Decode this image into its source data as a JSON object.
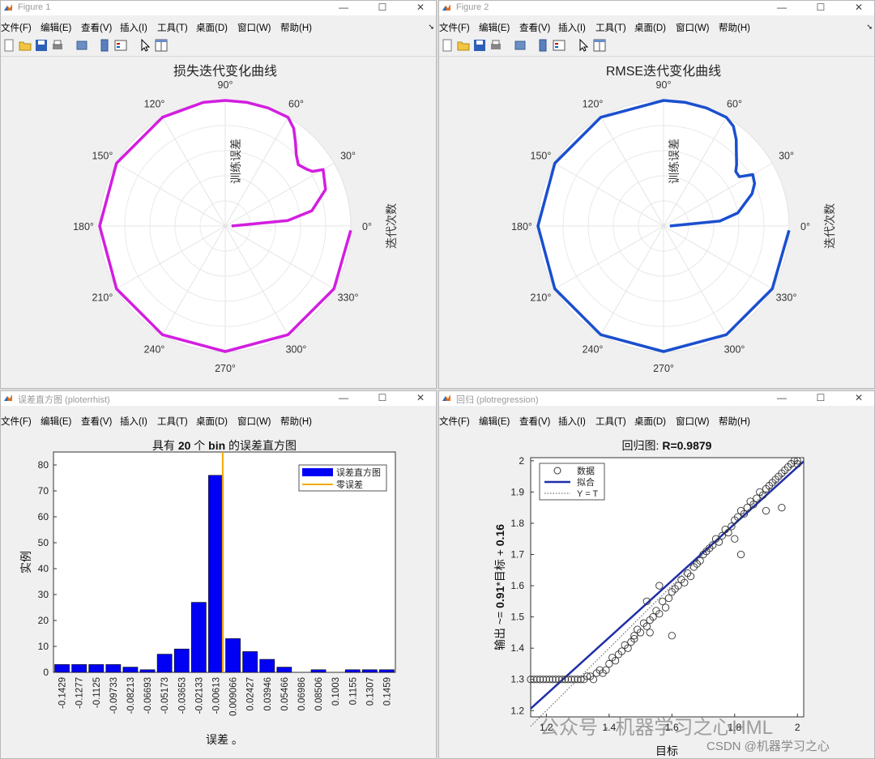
{
  "menu": [
    "文件(F)",
    "编辑(E)",
    "查看(V)",
    "插入(I)",
    "工具(T)",
    "桌面(D)",
    "窗口(W)",
    "帮助(H)"
  ],
  "window_controls": [
    "—",
    "☐",
    "✕"
  ],
  "colors": {
    "magenta": "#d21ee0",
    "blue": "#1a4fcf",
    "bar": "#0000f5",
    "zero_line": "#f2a900",
    "regression_line": "#1f2fa8"
  },
  "fig1": {
    "window_title": "Figure 1",
    "title": "损失迭代变化曲线",
    "radial_label": "训练误差",
    "theta_label": "迭代次数",
    "angle_ticks": [
      "0°",
      "30°",
      "60°",
      "90°",
      "120°",
      "150°",
      "180°",
      "210°",
      "240°",
      "270°",
      "300°",
      "330°"
    ],
    "chart_data": {
      "type": "line",
      "coordinate": "polar",
      "color": "#d21ee0",
      "theta_deg": [
        0,
        5,
        10,
        20,
        30,
        32,
        35,
        40,
        45,
        50,
        55,
        60,
        70,
        80,
        90,
        100,
        120,
        150,
        180,
        210,
        240,
        270,
        300,
        330,
        358
      ],
      "r": [
        0.05,
        0.5,
        0.7,
        0.85,
        0.9,
        0.82,
        0.79,
        0.76,
        0.8,
        0.87,
        0.95,
        1.0,
        1.0,
        1.0,
        1.0,
        1.0,
        1.0,
        1.0,
        1.0,
        1.0,
        1.0,
        1.0,
        1.0,
        1.0,
        1.0
      ]
    }
  },
  "fig2": {
    "window_title": "Figure 2",
    "title": "RMSE迭代变化曲线",
    "radial_label": "训练误差",
    "theta_label": "迭代次数",
    "angle_ticks": [
      "0°",
      "30°",
      "60°",
      "90°",
      "120°",
      "150°",
      "180°",
      "210°",
      "240°",
      "270°",
      "300°",
      "330°"
    ],
    "chart_data": {
      "type": "line",
      "coordinate": "polar",
      "color": "#1a4fcf",
      "theta_deg": [
        0,
        5,
        10,
        20,
        25,
        30,
        33,
        37,
        40,
        45,
        50,
        55,
        60,
        70,
        80,
        90,
        120,
        150,
        180,
        210,
        240,
        270,
        300,
        330,
        358
      ],
      "r": [
        0.05,
        0.45,
        0.6,
        0.75,
        0.8,
        0.82,
        0.72,
        0.72,
        0.76,
        0.82,
        0.9,
        0.97,
        1.0,
        1.0,
        1.0,
        1.0,
        1.0,
        1.0,
        1.0,
        1.0,
        1.0,
        1.0,
        1.0,
        1.0,
        1.0
      ]
    }
  },
  "fig3": {
    "window_title": "误差直方图 (ploterrhist)",
    "title_pre": "具有 ",
    "title_bold": "20",
    "title_mid": " 个 ",
    "title_bold2": "bin",
    "title_post": " 的误差直方图",
    "legend": [
      "误差直方图",
      "零误差"
    ],
    "chart_data": {
      "type": "bar",
      "categories": [
        "-0.1429",
        "-0.1277",
        "-0.1125",
        "-0.09733",
        "-0.08213",
        "-0.06693",
        "-0.05173",
        "-0.03653",
        "-0.02133",
        "-0.00613",
        "0.009066",
        "0.02427",
        "0.03946",
        "0.05466",
        "0.06986",
        "0.08506",
        "0.1003",
        "0.1155",
        "0.1307",
        "0.1459"
      ],
      "values": [
        3,
        3,
        3,
        3,
        2,
        1,
        7,
        9,
        27,
        76,
        13,
        8,
        5,
        2,
        0,
        1,
        0,
        1,
        1,
        1
      ],
      "ylabel": "实例",
      "xlabel": "误差 。",
      "ylim": [
        0,
        85
      ],
      "yticks": [
        0,
        10,
        20,
        30,
        40,
        50,
        60,
        70,
        80
      ],
      "zero_error_x": -0.00613
    }
  },
  "fig4": {
    "window_title": "回归 (plotregression)",
    "title_pre": "回归图: ",
    "title_bold": "R=0.9879",
    "ylabel_pre": "输出 ~= ",
    "ylabel_bold": "0.91",
    "ylabel_post": "*目标 + ",
    "ylabel_bold2": "0.16",
    "xlabel": "目标",
    "legend": [
      "数据",
      "拟合",
      "Y = T"
    ],
    "chart_data": {
      "type": "scatter",
      "xlim": [
        1.15,
        2.02
      ],
      "ylim": [
        1.18,
        2.01
      ],
      "xticks": [
        "1.2",
        "1.4",
        "1.6",
        "1.8",
        "2"
      ],
      "yticks": [
        "1.2",
        "1.3",
        "1.4",
        "1.5",
        "1.6",
        "1.7",
        "1.8",
        "1.9",
        "2"
      ],
      "fit": {
        "slope": 0.91,
        "intercept": 0.16
      },
      "points": [
        [
          1.15,
          1.3
        ],
        [
          1.16,
          1.3
        ],
        [
          1.17,
          1.3
        ],
        [
          1.18,
          1.3
        ],
        [
          1.19,
          1.3
        ],
        [
          1.2,
          1.3
        ],
        [
          1.21,
          1.3
        ],
        [
          1.22,
          1.3
        ],
        [
          1.23,
          1.3
        ],
        [
          1.24,
          1.3
        ],
        [
          1.25,
          1.3
        ],
        [
          1.26,
          1.3
        ],
        [
          1.27,
          1.3
        ],
        [
          1.28,
          1.3
        ],
        [
          1.29,
          1.3
        ],
        [
          1.3,
          1.3
        ],
        [
          1.31,
          1.3
        ],
        [
          1.32,
          1.3
        ],
        [
          1.33,
          1.31
        ],
        [
          1.34,
          1.31
        ],
        [
          1.35,
          1.3
        ],
        [
          1.36,
          1.32
        ],
        [
          1.37,
          1.33
        ],
        [
          1.38,
          1.32
        ],
        [
          1.39,
          1.33
        ],
        [
          1.4,
          1.35
        ],
        [
          1.41,
          1.37
        ],
        [
          1.42,
          1.36
        ],
        [
          1.43,
          1.38
        ],
        [
          1.44,
          1.39
        ],
        [
          1.45,
          1.41
        ],
        [
          1.46,
          1.4
        ],
        [
          1.47,
          1.42
        ],
        [
          1.48,
          1.44
        ],
        [
          1.49,
          1.46
        ],
        [
          1.5,
          1.45
        ],
        [
          1.51,
          1.48
        ],
        [
          1.52,
          1.47
        ],
        [
          1.53,
          1.49
        ],
        [
          1.54,
          1.5
        ],
        [
          1.55,
          1.52
        ],
        [
          1.56,
          1.51
        ],
        [
          1.57,
          1.55
        ],
        [
          1.58,
          1.53
        ],
        [
          1.59,
          1.56
        ],
        [
          1.6,
          1.58
        ],
        [
          1.61,
          1.59
        ],
        [
          1.62,
          1.6
        ],
        [
          1.63,
          1.62
        ],
        [
          1.64,
          1.61
        ],
        [
          1.65,
          1.64
        ],
        [
          1.66,
          1.63
        ],
        [
          1.67,
          1.66
        ],
        [
          1.68,
          1.67
        ],
        [
          1.69,
          1.68
        ],
        [
          1.7,
          1.7
        ],
        [
          1.71,
          1.71
        ],
        [
          1.72,
          1.72
        ],
        [
          1.73,
          1.73
        ],
        [
          1.74,
          1.75
        ],
        [
          1.75,
          1.74
        ],
        [
          1.76,
          1.76
        ],
        [
          1.77,
          1.78
        ],
        [
          1.78,
          1.77
        ],
        [
          1.79,
          1.79
        ],
        [
          1.8,
          1.81
        ],
        [
          1.81,
          1.82
        ],
        [
          1.82,
          1.84
        ],
        [
          1.83,
          1.83
        ],
        [
          1.84,
          1.85
        ],
        [
          1.85,
          1.87
        ],
        [
          1.86,
          1.86
        ],
        [
          1.87,
          1.88
        ],
        [
          1.88,
          1.9
        ],
        [
          1.89,
          1.89
        ],
        [
          1.9,
          1.91
        ],
        [
          1.91,
          1.92
        ],
        [
          1.92,
          1.93
        ],
        [
          1.93,
          1.94
        ],
        [
          1.94,
          1.95
        ],
        [
          1.95,
          1.96
        ],
        [
          1.96,
          1.97
        ],
        [
          1.97,
          1.98
        ],
        [
          1.98,
          1.99
        ],
        [
          1.99,
          2.0
        ],
        [
          2.0,
          1.99
        ],
        [
          2.0,
          2.0
        ],
        [
          1.6,
          1.44
        ],
        [
          1.82,
          1.7
        ],
        [
          1.8,
          1.75
        ],
        [
          1.9,
          1.84
        ],
        [
          1.95,
          1.85
        ],
        [
          1.48,
          1.43
        ],
        [
          1.52,
          1.55
        ],
        [
          1.56,
          1.6
        ],
        [
          1.53,
          1.45
        ]
      ]
    }
  },
  "watermark": {
    "main": "公众号 · 机器学习之心HML",
    "sub": "CSDN @机器学习之心"
  }
}
